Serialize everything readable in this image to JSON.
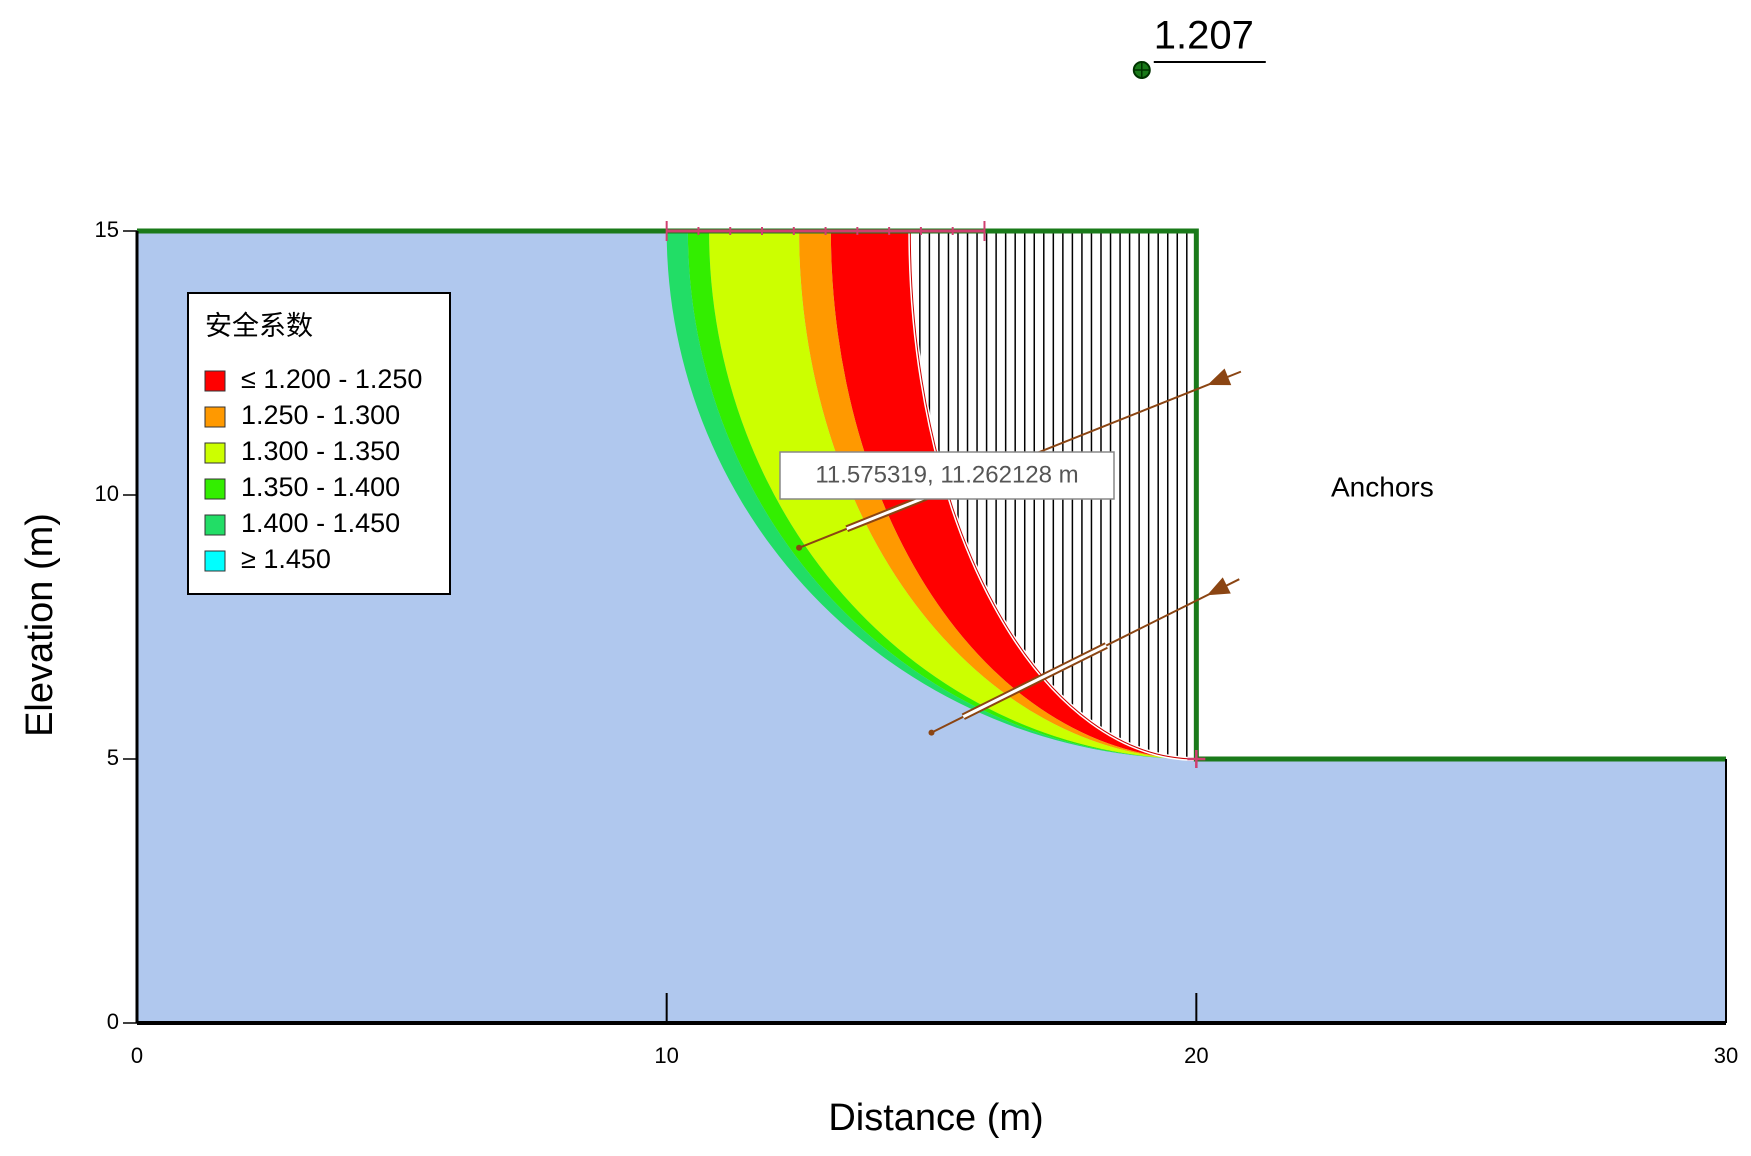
{
  "chart_data": {
    "type": "slope",
    "xlabel": "Distance (m)",
    "ylabel": "Elevation (m)",
    "xlim": [
      0,
      30
    ],
    "ylim": [
      0,
      15
    ],
    "xticks": [
      0,
      10,
      20,
      30
    ],
    "yticks": [
      0,
      5,
      10,
      15
    ],
    "ground": {
      "x": [
        0,
        0,
        20,
        20,
        30,
        30
      ],
      "y": [
        0,
        15,
        15,
        5,
        5,
        0
      ],
      "color": "#b0c8ee",
      "line_color": "#1a7a1a"
    },
    "legend_title": "安全系数",
    "series": [
      {
        "name": "≤ 1.200 - 1.250",
        "color": "#ff0000",
        "entry": [
          13.1,
          14.6
        ]
      },
      {
        "name": "1.250 - 1.300",
        "color": "#ff9900",
        "entry": [
          12.5,
          13.1
        ]
      },
      {
        "name": "1.300 - 1.350",
        "color": "#ccff00",
        "entry": [
          10.8,
          12.5
        ]
      },
      {
        "name": "1.350 - 1.400",
        "color": "#33ee00",
        "entry": [
          10.4,
          10.8
        ]
      },
      {
        "name": "1.400 - 1.450",
        "color": "#22dd66",
        "entry": [
          10.0,
          10.4
        ]
      },
      {
        "name": "≥ 1.450",
        "color": "#00ffff"
      }
    ],
    "slip_entry": 14.6,
    "slices": 30,
    "entry_range": [
      10,
      16
    ],
    "exit_point": [
      20,
      5
    ],
    "anchors": [
      {
        "x": [
          20,
          12.5
        ],
        "y": [
          12,
          9
        ],
        "bond_x": [
          13.4,
          14.9
        ]
      },
      {
        "x": [
          20,
          15
        ],
        "y": [
          8,
          5.5
        ],
        "bond_x": [
          15.6,
          18.3
        ]
      }
    ],
    "anchors_label": "Anchors",
    "critical": {
      "x": 18.97,
      "y": 18.05,
      "fos": 1.207
    },
    "tooltip": "11.575319, 11.262128 m"
  }
}
